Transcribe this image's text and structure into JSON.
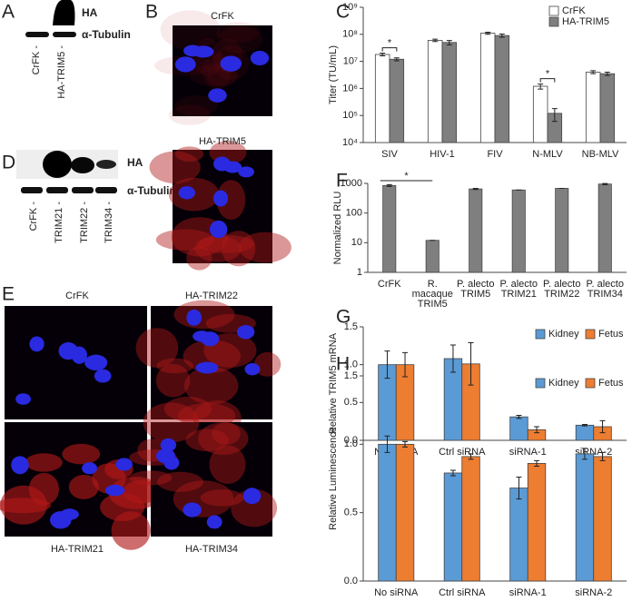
{
  "panel_labels": [
    "A",
    "B",
    "C",
    "D",
    "E",
    "F",
    "G",
    "H"
  ],
  "blot_a": {
    "bands": [
      "HA",
      "α-Tubulin"
    ],
    "lanes": [
      "CrFK -",
      "HA-TRIM5 -"
    ]
  },
  "blot_d": {
    "bands": [
      "HA",
      "α-Tubulin"
    ],
    "lanes": [
      "CrFK -",
      "TRIM21 -",
      "TRIM22 -",
      "TRIM34 -"
    ]
  },
  "micrographs_b": [
    "CrFK",
    "HA-TRIM5"
  ],
  "micrographs_e": [
    "CrFK",
    "HA-TRIM22",
    "HA-TRIM21",
    "HA-TRIM34"
  ],
  "chart_data": [
    {
      "type": "bar",
      "log_scale": true,
      "ylabel": "Titer (TU/mL)",
      "categories": [
        [
          "SIV"
        ],
        [
          "HIV-1"
        ],
        [
          "FIV"
        ],
        [
          "N-MLV"
        ],
        [
          "NB-MLV"
        ]
      ],
      "series": [
        {
          "name": "CrFK",
          "color": "#ffffff",
          "values": [
            18000000,
            60000000,
            110000000,
            1200000,
            4000000
          ],
          "errors": [
            2000000,
            6000000,
            10000000,
            250000,
            500000
          ]
        },
        {
          "name": "HA-TRIM5",
          "color": "#7f7f7f",
          "values": [
            12000000,
            50000000,
            90000000,
            120000,
            3500000
          ],
          "errors": [
            1500000,
            9000000,
            12000000,
            60000,
            500000
          ]
        }
      ],
      "ylim": [
        10000,
        1000000000
      ],
      "yticks": [
        {
          "value": 10000,
          "label": "10⁴"
        },
        {
          "value": 100000,
          "label": "10⁵"
        },
        {
          "value": 1000000,
          "label": "10⁶"
        },
        {
          "value": 10000000,
          "label": "10⁷"
        },
        {
          "value": 100000000,
          "label": "10⁸"
        },
        {
          "value": 1000000000,
          "label": "10⁹"
        }
      ],
      "legend": "top-right",
      "annotations": [
        "*",
        "*"
      ]
    },
    {
      "type": "bar",
      "log_scale": true,
      "ylabel": "Normalized RLU",
      "categories": [
        [
          "CrFK"
        ],
        [
          "R.",
          "macaque",
          "TRIM5"
        ],
        [
          "P. alecto",
          "TRIM5"
        ],
        [
          "P. alecto",
          "TRIM21"
        ],
        [
          "P. alecto",
          "TRIM22"
        ],
        [
          "P. alecto",
          "TRIM34"
        ]
      ],
      "series": [
        {
          "color": "#7f7f7f",
          "values": [
            850,
            12,
            650,
            600,
            680,
            950
          ],
          "errors": [
            60,
            0,
            30,
            0,
            0,
            40
          ]
        }
      ],
      "ylim": [
        1,
        1000
      ],
      "yticks": [
        1,
        10,
        100,
        1000
      ],
      "annotations": [
        "*"
      ]
    },
    {
      "type": "bar",
      "log_scale": false,
      "ylabel": "Relative TRIM5 mRNA",
      "categories": [
        [
          "No siRNA"
        ],
        [
          "Ctrl siRNA"
        ],
        [
          "siRNA-1"
        ],
        [
          "siRNA-2"
        ]
      ],
      "series": [
        {
          "name": "Kidney",
          "color": "#5b9bd5",
          "values": [
            1.0,
            1.08,
            0.31,
            0.2
          ],
          "errors": [
            0.18,
            0.18,
            0.02,
            0.01
          ]
        },
        {
          "name": "Fetus",
          "color": "#ed7d31",
          "values": [
            1.0,
            1.01,
            0.14,
            0.18
          ],
          "errors": [
            0.16,
            0.28,
            0.04,
            0.08
          ]
        }
      ],
      "ylim": [
        0,
        1.5
      ],
      "yticks": [
        {
          "value": 0,
          "label": "0.0"
        },
        {
          "value": 0.5,
          "label": "0.5"
        },
        {
          "value": 1,
          "label": "1.0"
        },
        {
          "value": 1.5,
          "label": "1.5"
        }
      ],
      "legend": "top-right"
    },
    {
      "type": "bar",
      "log_scale": false,
      "ylabel": "Relative Luminescence",
      "categories": [
        [
          "No siRNA"
        ],
        [
          "Ctrl siRNA"
        ],
        [
          "siRNA-1"
        ],
        [
          "siRNA-2"
        ]
      ],
      "series": [
        {
          "name": "Kidney",
          "color": "#5b9bd5",
          "values": [
            1.0,
            0.79,
            0.68,
            0.93
          ],
          "errors": [
            0.06,
            0.02,
            0.08,
            0.04
          ]
        },
        {
          "name": "Fetus",
          "color": "#ed7d31",
          "values": [
            1.0,
            0.91,
            0.86,
            0.91
          ],
          "errors": [
            0.02,
            0.02,
            0.02,
            0.03
          ]
        }
      ],
      "ylim": [
        0,
        1.5
      ],
      "yticks": [
        {
          "value": 0,
          "label": "0.0"
        },
        {
          "value": 0.5,
          "label": "0.5"
        },
        {
          "value": 1,
          "label": "1.0"
        },
        {
          "value": 1.5,
          "label": "1.5"
        }
      ],
      "legend": "top-right"
    }
  ]
}
